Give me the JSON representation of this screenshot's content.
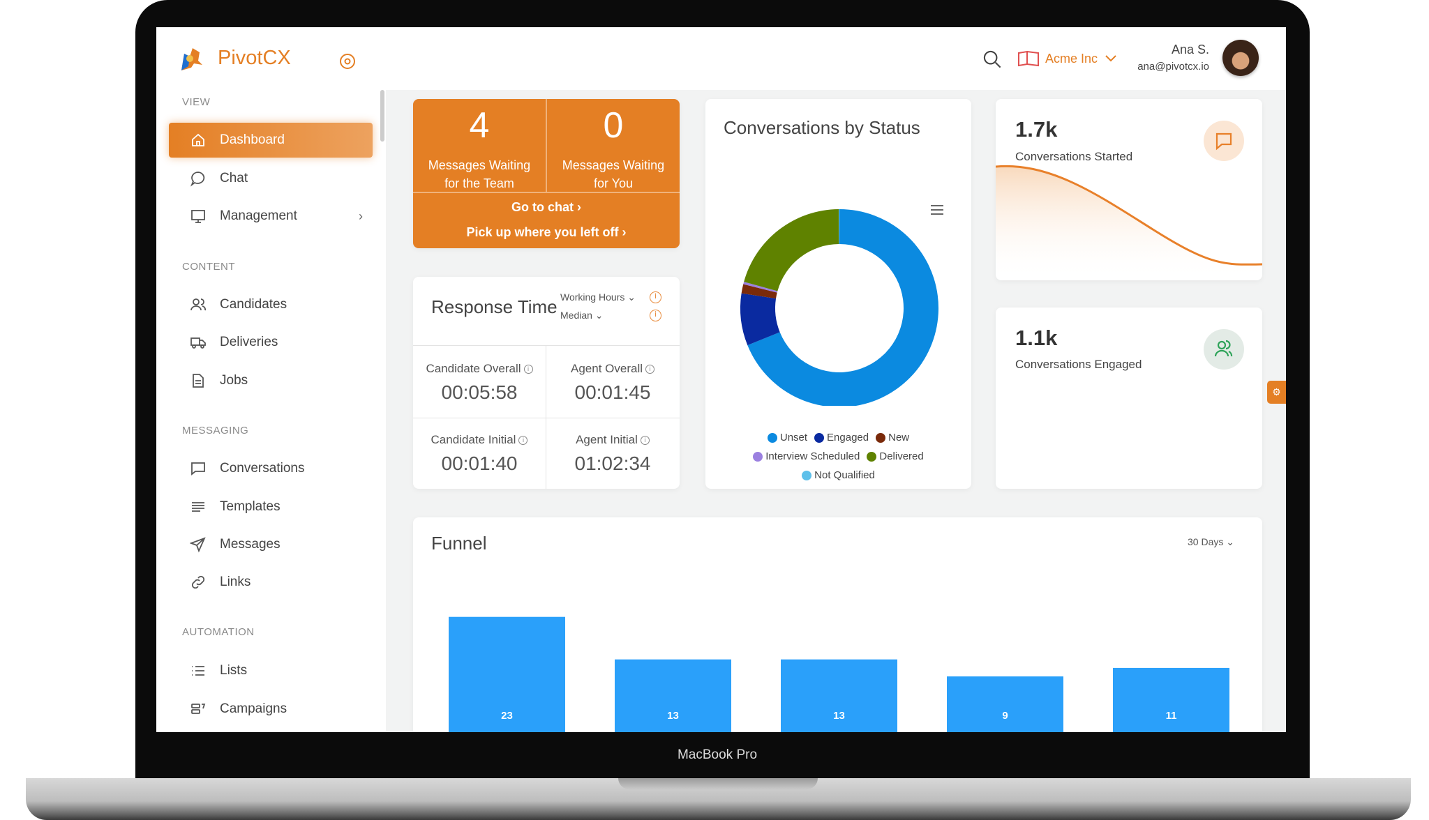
{
  "brand": {
    "name": "PivotCX",
    "accent": "#e47f24"
  },
  "header": {
    "org": "Acme Inc",
    "user_name": "Ana S.",
    "user_email": "ana@pivotcx.io"
  },
  "sidebar": {
    "sections": [
      "VIEW",
      "CONTENT",
      "MESSAGING",
      "AUTOMATION"
    ],
    "items": [
      {
        "label": "Dashboard",
        "icon": "home-icon",
        "active": true
      },
      {
        "label": "Chat",
        "icon": "chat-bubble-icon"
      },
      {
        "label": "Management",
        "icon": "monitor-icon",
        "has_submenu": true
      },
      {
        "label": "Candidates",
        "icon": "users-icon"
      },
      {
        "label": "Deliveries",
        "icon": "truck-icon"
      },
      {
        "label": "Jobs",
        "icon": "document-icon"
      },
      {
        "label": "Conversations",
        "icon": "message-square-icon"
      },
      {
        "label": "Templates",
        "icon": "align-left-icon"
      },
      {
        "label": "Messages",
        "icon": "send-icon"
      },
      {
        "label": "Links",
        "icon": "link-icon"
      },
      {
        "label": "Lists",
        "icon": "list-icon"
      },
      {
        "label": "Campaigns",
        "icon": "campaign-icon"
      }
    ]
  },
  "waiting": {
    "team_count": "4",
    "team_label_1": "Messages Waiting",
    "team_label_2": "for the Team",
    "you_count": "0",
    "you_label_1": "Messages Waiting",
    "you_label_2": "for You",
    "go_to_chat": "Go to chat",
    "pick_up": "Pick up where you left off"
  },
  "response_time": {
    "title": "Response Time",
    "hours_filter": "Working Hours",
    "stat_filter": "Median",
    "cells": [
      {
        "label": "Candidate Overall",
        "value": "00:05:58"
      },
      {
        "label": "Agent Overall",
        "value": "00:01:45"
      },
      {
        "label": "Candidate Initial",
        "value": "00:01:40"
      },
      {
        "label": "Agent Initial",
        "value": "01:02:34"
      }
    ]
  },
  "kpis": [
    {
      "value": "1.7k",
      "label": "Conversations Started",
      "icon": "message-square-icon"
    },
    {
      "value": "1.1k",
      "label": "Conversations Engaged",
      "icon": "users-icon"
    }
  ],
  "funnel_card": {
    "title": "Funnel",
    "range": "30 Days"
  },
  "device_label": "MacBook Pro",
  "chart_data": [
    {
      "type": "pie",
      "title": "Conversations by Status",
      "donut": true,
      "legend_position": "bottom",
      "labels": [
        "Unset",
        "Engaged",
        "New",
        "Interview Scheduled",
        "Delivered",
        "Not Qualified"
      ],
      "values": [
        68.9,
        8.5,
        1.5,
        0.4,
        20.6,
        0.1
      ],
      "colors": [
        "#0b8ae0",
        "#0a2aa0",
        "#7a2a0a",
        "#9b80e0",
        "#5f8200",
        "#5ec0ea"
      ]
    },
    {
      "type": "bar",
      "title": "Funnel",
      "orientation": "centered-funnel",
      "values": [
        23,
        13,
        13,
        9,
        11
      ],
      "color": "#2aa0fa",
      "data_labels": true
    },
    {
      "type": "area",
      "series_label": "Conversations Started",
      "trend": "decreasing",
      "color": "#e8802a"
    }
  ]
}
